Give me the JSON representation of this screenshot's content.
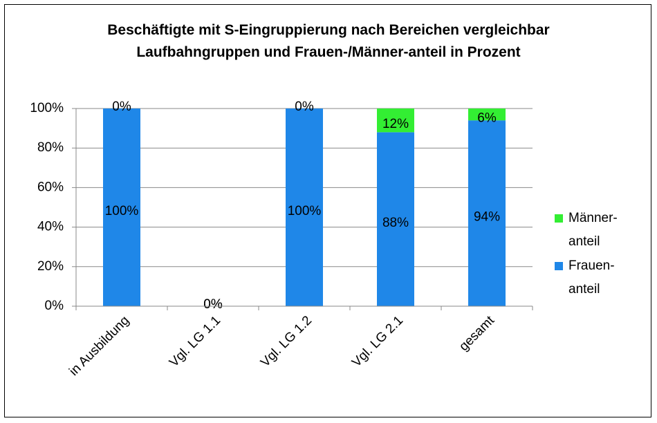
{
  "chart_data": {
    "type": "stacked_bar",
    "title": "Beschäftigte mit S-Eingruppierung nach Bereichen vergleichbar Laufbahngruppen und Frauen-/Männer-anteil in Prozent",
    "categories": [
      "in Ausbildung",
      "Vgl. LG 1.1",
      "Vgl. LG 1.2",
      "Vgl. LG 2.1",
      "gesamt"
    ],
    "series": [
      {
        "name": "Frauen-anteil",
        "color": "#1f87e8",
        "values": [
          100,
          0,
          100,
          88,
          94
        ],
        "value_labels": [
          "100%",
          "0%",
          "100%",
          "88%",
          "94%"
        ]
      },
      {
        "name": "Männer-anteil",
        "color": "#33ee33",
        "values": [
          0,
          0,
          0,
          12,
          6
        ],
        "value_labels": [
          "0%",
          "0%",
          "0%",
          "12%",
          "6%"
        ]
      }
    ],
    "ylim": [
      0,
      100
    ],
    "yticks": [
      {
        "value": 0,
        "label": "0%"
      },
      {
        "value": 20,
        "label": "20%"
      },
      {
        "value": 40,
        "label": "40%"
      },
      {
        "value": 60,
        "label": "60%"
      },
      {
        "value": 80,
        "label": "80%"
      },
      {
        "value": 100,
        "label": "100%"
      }
    ],
    "grid": true,
    "legend": "right"
  }
}
